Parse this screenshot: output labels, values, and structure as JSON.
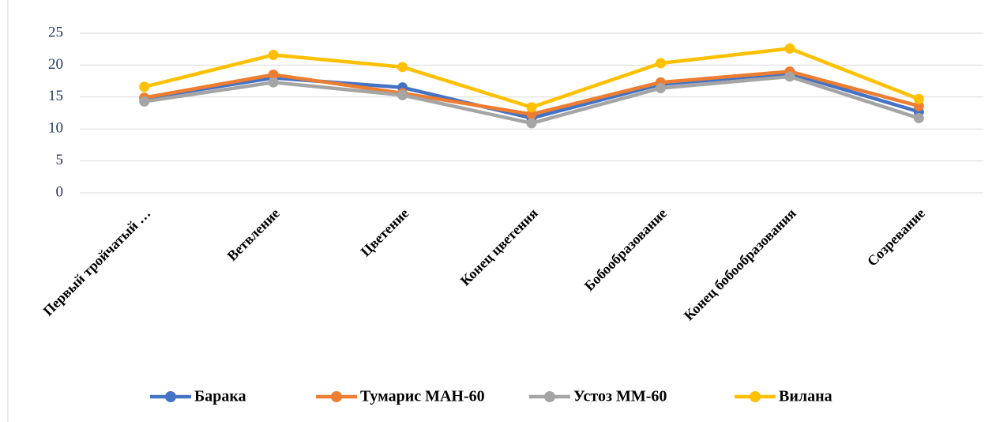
{
  "chart_data": {
    "type": "line",
    "categories": [
      "Первый тройчатый …",
      "Ветвление",
      "Цветение",
      "Конец цветения",
      "Бобообразование",
      "Конец бобообразования",
      "Созревание"
    ],
    "series": [
      {
        "name": "Барака",
        "color": "#4472c4",
        "values": [
          14.8,
          18.0,
          16.5,
          11.7,
          17.0,
          18.7,
          12.7
        ]
      },
      {
        "name": "Тумарис МАН-60",
        "color": "#ed7d31",
        "values": [
          14.9,
          18.5,
          15.6,
          12.3,
          17.3,
          19.0,
          13.6
        ]
      },
      {
        "name": "Устоз ММ-60",
        "color": "#a5a5a5",
        "values": [
          14.3,
          17.3,
          15.3,
          10.9,
          16.4,
          18.2,
          11.7
        ]
      },
      {
        "name": "Вилана",
        "color": "#ffc000",
        "values": [
          16.6,
          21.6,
          19.7,
          13.4,
          20.3,
          22.6,
          14.7
        ]
      }
    ],
    "ylim": [
      0,
      25
    ],
    "yticks": [
      0,
      5,
      10,
      15,
      20,
      25
    ],
    "grid": true,
    "legend": "bottom"
  }
}
